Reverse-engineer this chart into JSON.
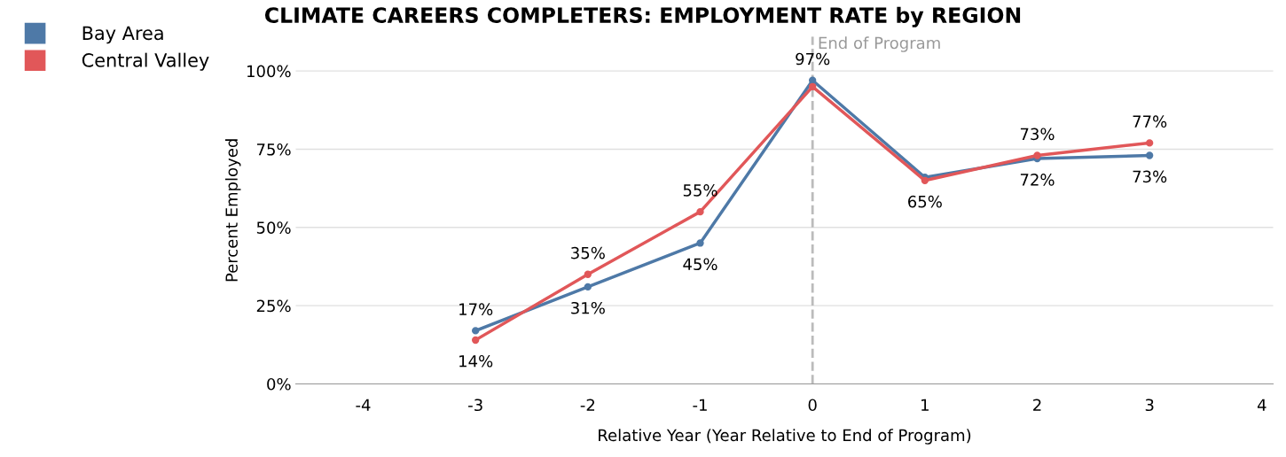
{
  "chart_data": {
    "type": "line",
    "title": "CLIMATE CAREERS COMPLETERS: EMPLOYMENT RATE by REGION",
    "xlabel": "Relative Year (Year Relative to End of Program)",
    "ylabel": "Percent Employed",
    "x": [
      -3,
      -2,
      -1,
      0,
      1,
      2,
      3
    ],
    "series": [
      {
        "name": "Bay Area",
        "color": "#4e79a7",
        "values": [
          17,
          31,
          45,
          97,
          66,
          72,
          73
        ],
        "value_labels": [
          "17%",
          "31%",
          "45%",
          "97%",
          null,
          "72%",
          "73%"
        ]
      },
      {
        "name": "Central Valley",
        "color": "#e15759",
        "values": [
          14,
          35,
          55,
          95,
          65,
          73,
          77
        ],
        "value_labels": [
          "14%",
          "35%",
          "55%",
          null,
          "65%",
          "73%",
          "77%"
        ]
      }
    ],
    "xlim": [
      -4.6,
      4.1
    ],
    "xticks": [
      -4,
      -3,
      -2,
      -1,
      0,
      1,
      2,
      3,
      4
    ],
    "ylim": [
      0,
      111
    ],
    "yticks": [
      {
        "value": 0,
        "label": "0%"
      },
      {
        "value": 25,
        "label": "25%"
      },
      {
        "value": 50,
        "label": "50%"
      },
      {
        "value": 75,
        "label": "75%"
      },
      {
        "value": 100,
        "label": "100%"
      }
    ],
    "ref_lines": [
      {
        "axis": "x",
        "value": 0,
        "label": "End of Program",
        "color": "#bbbbbb",
        "line_style": "dashed"
      }
    ],
    "grid": "y",
    "legend": "top left",
    "marker": "circle",
    "line_style": "solid"
  }
}
